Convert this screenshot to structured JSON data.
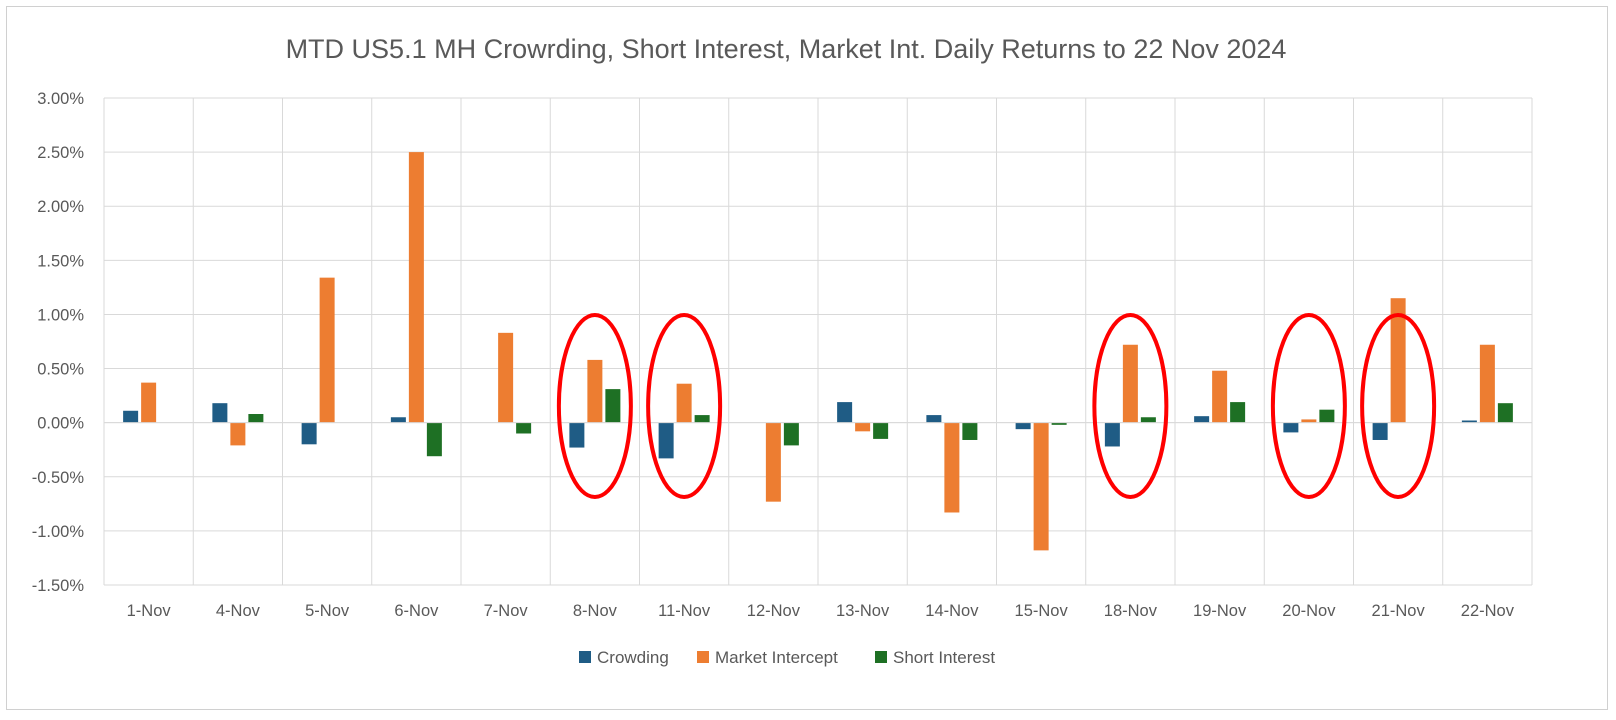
{
  "chart_data": {
    "type": "bar",
    "title": "MTD US5.1 MH Crowrding, Short Interest, Market Int. Daily Returns to 22 Nov  2024",
    "xlabel": "",
    "ylabel": "",
    "ylim": [
      -0.015,
      0.03
    ],
    "y_ticks": [
      {
        "value": 0.03,
        "label": "3.00%"
      },
      {
        "value": 0.025,
        "label": "2.50%"
      },
      {
        "value": 0.02,
        "label": "2.00%"
      },
      {
        "value": 0.015,
        "label": "1.50%"
      },
      {
        "value": 0.01,
        "label": "1.00%"
      },
      {
        "value": 0.005,
        "label": "0.50%"
      },
      {
        "value": 0.0,
        "label": "0.00%"
      },
      {
        "value": -0.005,
        "label": "-0.50%"
      },
      {
        "value": -0.01,
        "label": "-1.00%"
      },
      {
        "value": -0.015,
        "label": "-1.50%"
      }
    ],
    "grid": true,
    "legend_position": "bottom",
    "categories": [
      "1-Nov",
      "4-Nov",
      "5-Nov",
      "6-Nov",
      "7-Nov",
      "8-Nov",
      "11-Nov",
      "12-Nov",
      "13-Nov",
      "14-Nov",
      "15-Nov",
      "18-Nov",
      "19-Nov",
      "20-Nov",
      "21-Nov",
      "22-Nov"
    ],
    "series": [
      {
        "name": "Crowding",
        "color": "#1f5c85",
        "values": [
          0.0011,
          0.0018,
          -0.002,
          0.0005,
          0.0,
          -0.0023,
          -0.0033,
          0.0,
          0.0019,
          0.0007,
          -0.0006,
          -0.0022,
          0.0006,
          -0.0009,
          -0.0016,
          0.0002
        ]
      },
      {
        "name": "Market Intercept",
        "color": "#ed7d31",
        "values": [
          0.0037,
          -0.0021,
          0.0134,
          0.025,
          0.0083,
          0.0058,
          0.0036,
          -0.0073,
          -0.0008,
          -0.0083,
          -0.0118,
          0.0072,
          0.0048,
          0.0003,
          0.0115,
          0.0072
        ]
      },
      {
        "name": "Short Interest",
        "color": "#1e7024",
        "values": [
          0.0,
          0.0008,
          0.0,
          -0.0031,
          -0.001,
          0.0031,
          0.0007,
          -0.0021,
          -0.0015,
          -0.0016,
          -0.0002,
          0.0005,
          0.0019,
          0.0012,
          0.0,
          0.0018
        ]
      }
    ],
    "annotations": {
      "type": "ellipse",
      "color": "#ff0000",
      "highlighted_categories": [
        "8-Nov",
        "11-Nov",
        "18-Nov",
        "20-Nov",
        "21-Nov"
      ]
    }
  }
}
